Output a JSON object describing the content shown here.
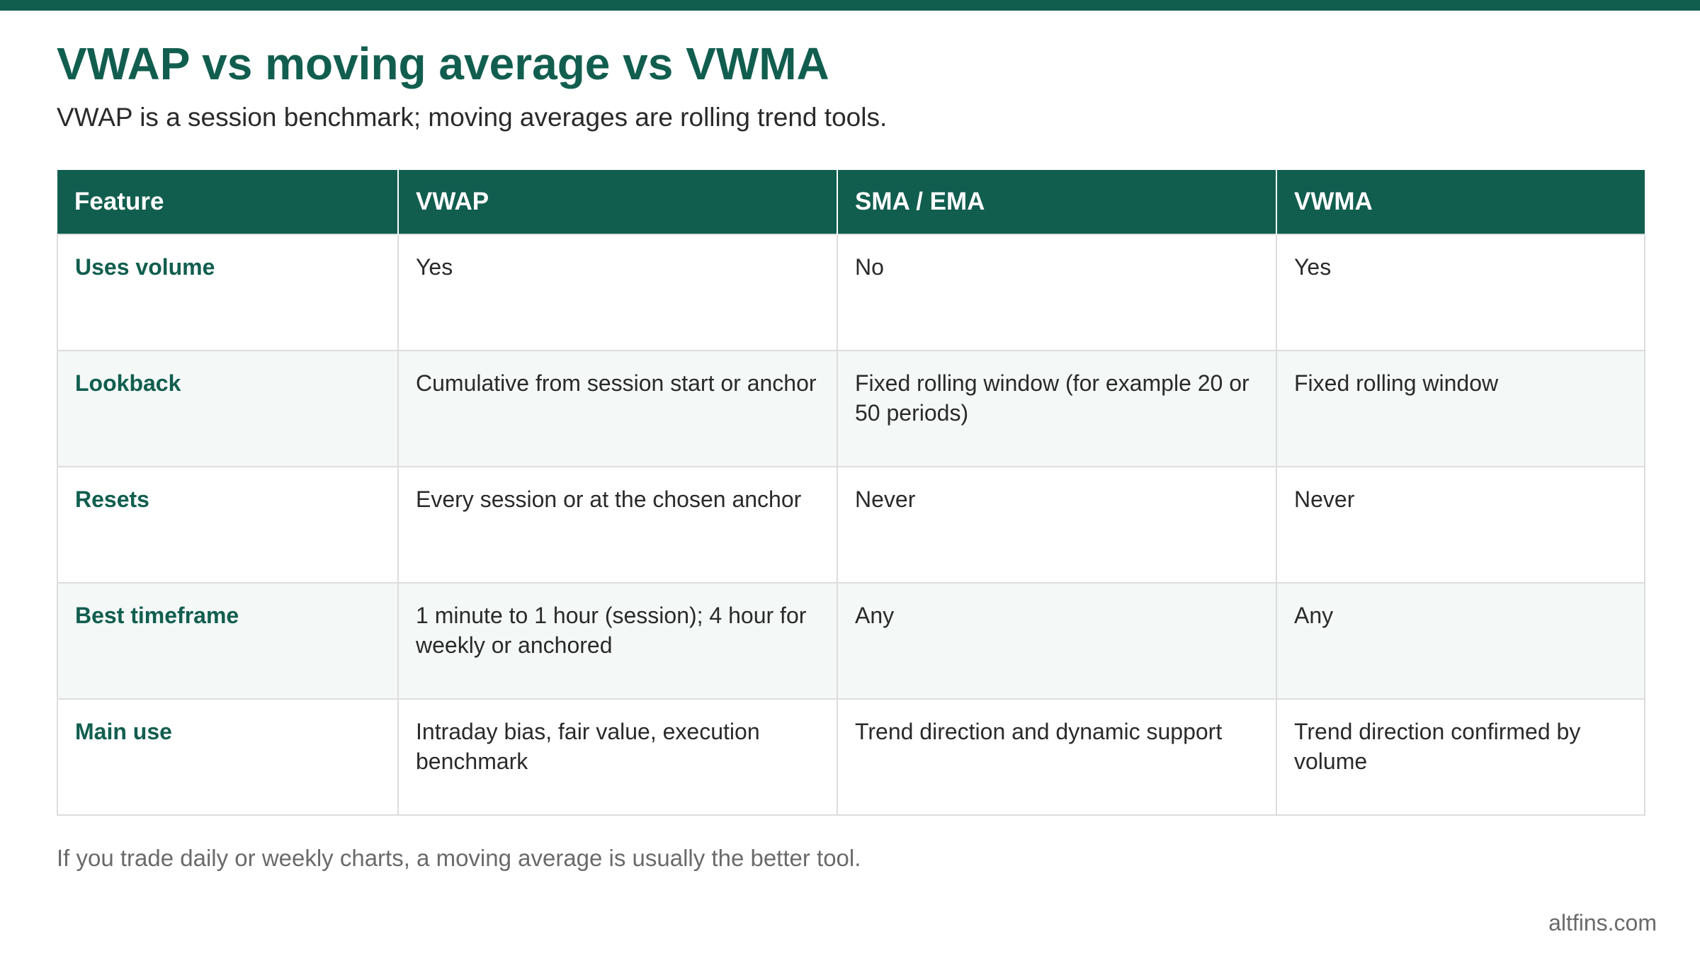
{
  "page": {
    "title": "VWAP vs moving average vs VWMA",
    "subtitle": "VWAP is a session benchmark; moving averages are rolling trend tools.",
    "note": "If you trade daily or weekly charts, a moving average is usually the better tool.",
    "footer": "altfins.com"
  },
  "table": {
    "headers": [
      "Feature",
      "VWAP",
      "SMA / EMA",
      "VWMA"
    ],
    "rows": [
      [
        "Uses volume",
        "Yes",
        "No",
        "Yes"
      ],
      [
        "Lookback",
        "Cumulative from session start or anchor",
        "Fixed rolling window (for example 20 or 50 periods)",
        "Fixed rolling window"
      ],
      [
        "Resets",
        "Every session or at the chosen anchor",
        "Never",
        "Never"
      ],
      [
        "Best timeframe",
        "1 minute to 1 hour (session); 4 hour for weekly or anchored",
        "Any",
        "Any"
      ],
      [
        "Main use",
        "Intraday bias, fair value, execution benchmark",
        "Trend direction and dynamic support",
        "Trend direction confirmed by volume"
      ]
    ]
  },
  "colors": {
    "brand": "#115e4f",
    "row_alt": "#f4f8f7",
    "border": "#dddddd",
    "muted_text": "#6a6a6a"
  }
}
